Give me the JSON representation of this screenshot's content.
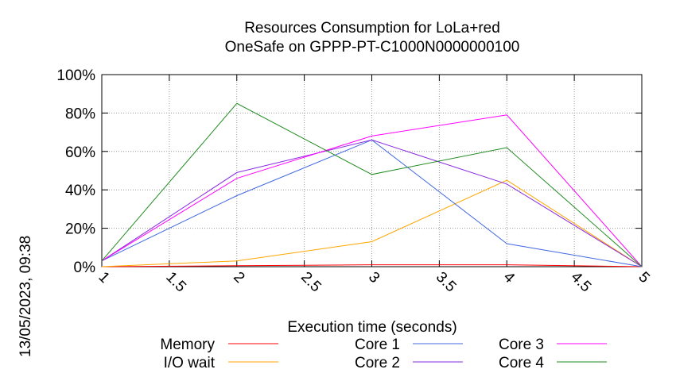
{
  "chart_data": {
    "type": "line",
    "title": "Resources Consumption for LoLa+red",
    "subtitle": "OneSafe on GPPP-PT-C1000N0000000100",
    "xlabel": "Execution time (seconds)",
    "ylabel": "",
    "timestamp": "13/05/2023, 09:38",
    "xlim": [
      1,
      5
    ],
    "ylim": [
      0,
      100
    ],
    "x_ticks": [
      "1",
      "1.5",
      "2",
      "2.5",
      "3",
      "3.5",
      "4",
      "4.5",
      "5"
    ],
    "y_ticks": [
      "0%",
      "20%",
      "40%",
      "60%",
      "80%",
      "100%"
    ],
    "grid": true,
    "legend_position": "bottom",
    "x": [
      1,
      2,
      3,
      4,
      5
    ],
    "series": [
      {
        "name": "Memory",
        "color": "#ff0000",
        "values": [
          0,
          0.5,
          1,
          1,
          0
        ]
      },
      {
        "name": "I/O wait",
        "color": "#ffa500",
        "values": [
          0,
          3,
          13,
          45,
          0
        ]
      },
      {
        "name": "Core 1",
        "color": "#4169e1",
        "values": [
          3,
          37,
          66,
          12,
          0
        ]
      },
      {
        "name": "Core 2",
        "color": "#8a2be2",
        "values": [
          3,
          49,
          66,
          43,
          0
        ]
      },
      {
        "name": "Core 3",
        "color": "#ff00ff",
        "values": [
          3,
          46,
          68,
          79,
          0
        ]
      },
      {
        "name": "Core 4",
        "color": "#228b22",
        "values": [
          3,
          85,
          48,
          62,
          0
        ]
      }
    ]
  }
}
